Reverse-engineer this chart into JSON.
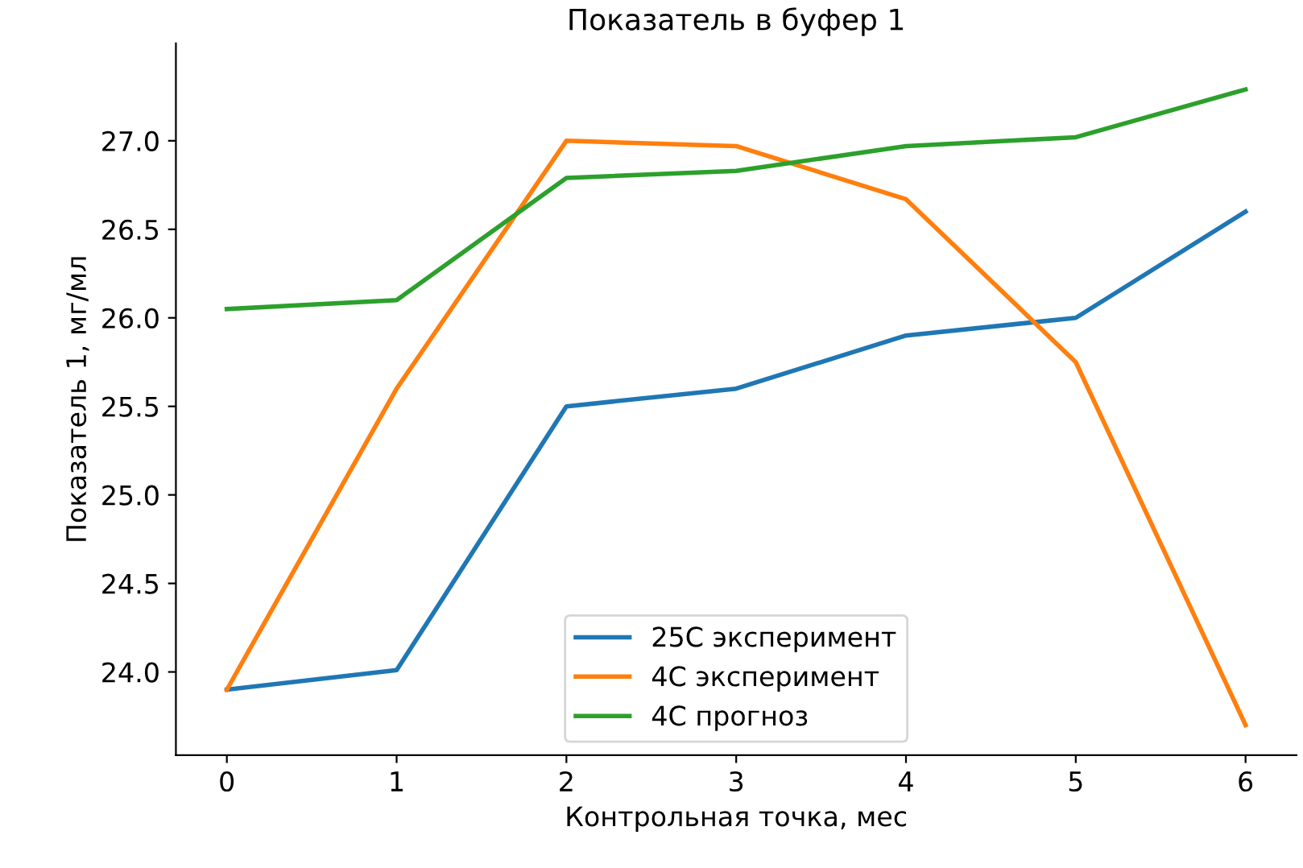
{
  "chart_data": {
    "type": "line",
    "title": "Показатель в буфер 1",
    "xlabel": "Контрольная точка, мес",
    "ylabel": "Показатель 1, мг/мл",
    "x": [
      0,
      1,
      2,
      3,
      4,
      5,
      6
    ],
    "series": [
      {
        "name": "25C эксперимент",
        "color": "#1f77b4",
        "values": [
          23.9,
          24.01,
          25.5,
          25.6,
          25.9,
          26.0,
          26.6
        ]
      },
      {
        "name": "4C эксперимент",
        "color": "#ff7f0e",
        "values": [
          23.9,
          25.6,
          27.0,
          26.97,
          26.67,
          25.75,
          23.7
        ]
      },
      {
        "name": "4C прогноз",
        "color": "#2ca02c",
        "values": [
          26.05,
          26.1,
          26.79,
          26.83,
          26.97,
          27.02,
          27.29
        ]
      }
    ],
    "xlim": [
      -0.3,
      6.3
    ],
    "ylim": [
      23.53,
      27.55
    ],
    "xticks": [
      0,
      1,
      2,
      3,
      4,
      5,
      6
    ],
    "yticks": [
      {
        "value": 24,
        "label": "24.0"
      },
      {
        "value": 24.5,
        "label": "24.5"
      },
      {
        "value": 25,
        "label": "25.0"
      },
      {
        "value": 25.5,
        "label": "25.5"
      },
      {
        "value": 26,
        "label": "26.0"
      },
      {
        "value": 26.5,
        "label": "26.5"
      },
      {
        "value": 27,
        "label": "27.0"
      }
    ],
    "grid": false,
    "legend": "bottom",
    "line_style": "solid",
    "marker": "none"
  }
}
